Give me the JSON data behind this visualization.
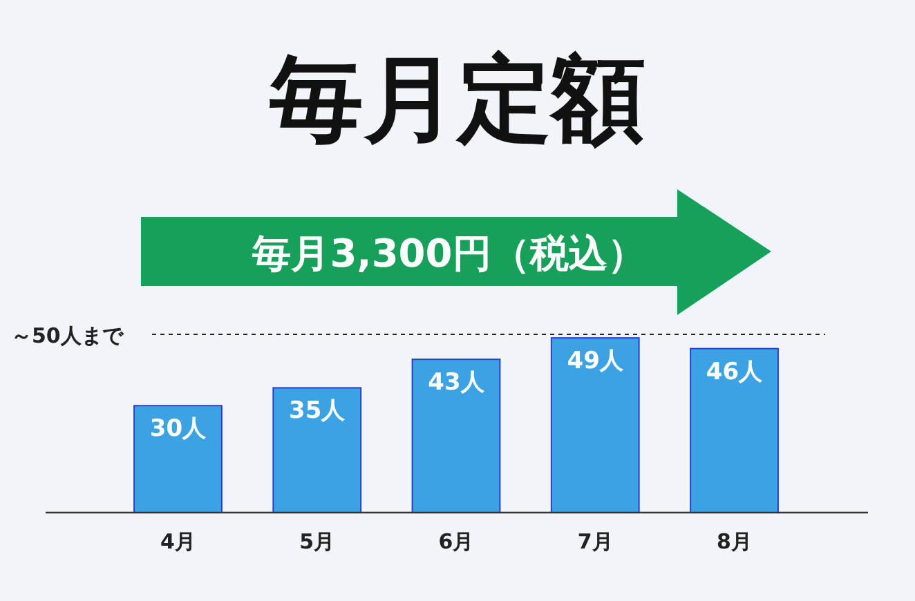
{
  "chart_data": {
    "type": "bar",
    "title": "毎月定額",
    "annotations": [
      "毎月3,300円（税込）"
    ],
    "categories": [
      "4月",
      "5月",
      "6月",
      "7月",
      "8月"
    ],
    "values": [
      30,
      35,
      43,
      49,
      46
    ],
    "value_labels": [
      "30人",
      "35人",
      "43人",
      "49人",
      "46人"
    ],
    "color": "#3ba3e3",
    "ref_lines": [
      {
        "axis": "y",
        "value": 50,
        "label": "～50人まで",
        "line_style": "dotted",
        "color": "#222222"
      }
    ]
  }
}
